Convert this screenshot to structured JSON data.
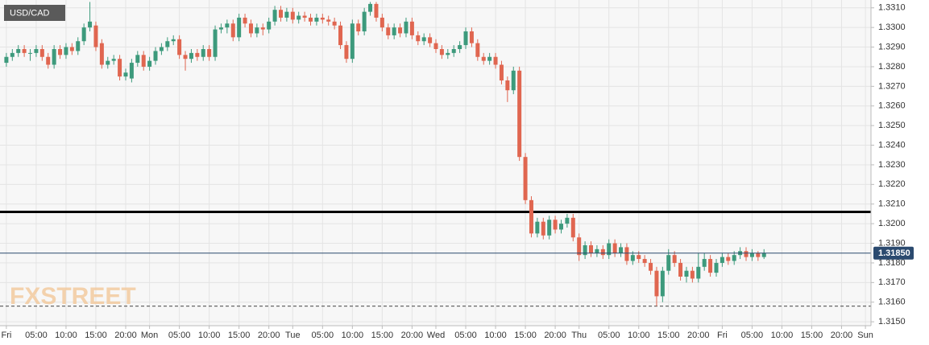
{
  "chart_data": {
    "type": "candlestick",
    "title": "USD/CAD",
    "watermark": "FXSTREET",
    "up_color": "#3d9a7c",
    "down_color": "#e06650",
    "grid": true,
    "x": [
      0,
      1,
      2,
      3,
      4,
      5,
      6,
      7,
      8,
      9,
      10,
      11,
      12,
      13,
      14,
      15,
      16,
      17,
      18,
      19,
      20,
      21,
      22,
      23,
      24,
      25,
      26,
      27,
      28,
      29,
      30,
      31,
      32,
      33,
      34,
      35,
      36,
      37,
      38,
      39,
      40,
      41,
      42,
      43,
      44,
      45,
      46,
      47,
      48,
      49,
      50,
      51,
      52,
      53,
      54,
      55,
      56,
      57,
      58,
      59,
      60,
      61,
      62,
      63,
      64,
      65,
      66,
      67,
      68,
      69,
      70,
      71,
      72,
      73,
      74,
      75,
      76,
      77,
      78,
      79,
      80,
      81,
      82,
      83,
      84,
      85,
      86,
      87,
      88,
      89,
      90,
      91,
      92,
      93,
      94,
      95,
      96,
      97,
      98,
      99,
      100,
      101,
      102,
      103,
      104,
      105,
      106,
      107,
      108,
      109,
      110,
      111,
      112,
      113,
      114,
      115,
      116,
      117,
      118,
      119,
      120,
      121,
      122,
      123,
      124,
      125,
      126,
      127
    ],
    "open": [
      1.3282,
      1.3285,
      1.3287,
      1.3289,
      1.3287,
      1.3287,
      1.3289,
      1.3285,
      1.3281,
      1.3289,
      1.3286,
      1.329,
      1.3288,
      1.3293,
      1.33,
      1.3301,
      1.3292,
      1.3281,
      1.3283,
      1.3284,
      1.3275,
      1.3274,
      1.3282,
      1.3286,
      1.328,
      1.3283,
      1.3288,
      1.329,
      1.3293,
      1.3294,
      1.3286,
      1.3284,
      1.3287,
      1.3285,
      1.3289,
      1.3285,
      1.3299,
      1.33,
      1.3302,
      1.3295,
      1.3305,
      1.3302,
      1.3297,
      1.33,
      1.3299,
      1.3303,
      1.3309,
      1.3305,
      1.3308,
      1.3304,
      1.3306,
      1.3305,
      1.3303,
      1.3305,
      1.3304,
      1.3303,
      1.3301,
      1.3291,
      1.3284,
      1.3302,
      1.3298,
      1.3308,
      1.3312,
      1.3305,
      1.33,
      1.3296,
      1.33,
      1.3297,
      1.3303,
      1.3296,
      1.3293,
      1.3295,
      1.3292,
      1.3289,
      1.3286,
      1.3287,
      1.3289,
      1.3291,
      1.3298,
      1.3292,
      1.3285,
      1.3283,
      1.3285,
      1.3281,
      1.3273,
      1.3268,
      1.3278,
      1.3234,
      1.3212,
      1.3195,
      1.3201,
      1.3194,
      1.3202,
      1.3197,
      1.32,
      1.3203,
      1.3193,
      1.3184,
      1.3189,
      1.3185,
      1.3187,
      1.3184,
      1.319,
      1.3185,
      1.3188,
      1.3181,
      1.3184,
      1.3182,
      1.318,
      1.3176,
      1.3163,
      1.3176,
      1.3184,
      1.318,
      1.3173,
      1.3176,
      1.3172,
      1.3178,
      1.3182,
      1.3175,
      1.318,
      1.3183,
      1.3181,
      1.3184,
      1.3186,
      1.3183,
      1.3185,
      1.3183
    ],
    "high": [
      1.3287,
      1.3289,
      1.3291,
      1.3291,
      1.3289,
      1.3291,
      1.3291,
      1.3287,
      1.3291,
      1.3291,
      1.3292,
      1.3292,
      1.3295,
      1.3302,
      1.3313,
      1.3303,
      1.3294,
      1.3285,
      1.3286,
      1.3286,
      1.3279,
      1.3284,
      1.3288,
      1.3288,
      1.3285,
      1.329,
      1.3292,
      1.3295,
      1.3296,
      1.3296,
      1.3288,
      1.3289,
      1.3289,
      1.3291,
      1.3291,
      1.3301,
      1.3302,
      1.3304,
      1.3304,
      1.3307,
      1.3307,
      1.3304,
      1.3302,
      1.3302,
      1.3305,
      1.3311,
      1.3311,
      1.331,
      1.331,
      1.3308,
      1.3308,
      1.3307,
      1.3307,
      1.3307,
      1.3306,
      1.3305,
      1.3303,
      1.3293,
      1.3304,
      1.3304,
      1.331,
      1.3313,
      1.3313,
      1.3307,
      1.3302,
      1.3302,
      1.3302,
      1.3305,
      1.3305,
      1.3298,
      1.3297,
      1.3297,
      1.3294,
      1.3291,
      1.3289,
      1.3291,
      1.3293,
      1.33,
      1.33,
      1.3294,
      1.3287,
      1.3287,
      1.3287,
      1.3283,
      1.3275,
      1.328,
      1.328,
      1.3236,
      1.3214,
      1.3203,
      1.3203,
      1.3204,
      1.3204,
      1.3202,
      1.3205,
      1.3205,
      1.3195,
      1.3191,
      1.3191,
      1.3189,
      1.3189,
      1.3192,
      1.3192,
      1.319,
      1.319,
      1.3186,
      1.3186,
      1.3184,
      1.3182,
      1.3178,
      1.3178,
      1.3187,
      1.3186,
      1.3182,
      1.3178,
      1.3178,
      1.3185,
      1.3185,
      1.3184,
      1.3182,
      1.3185,
      1.3185,
      1.3186,
      1.3188,
      1.3188,
      1.3187,
      1.3186,
      1.3187
    ],
    "low": [
      1.328,
      1.3283,
      1.3285,
      1.3285,
      1.3283,
      1.3285,
      1.3283,
      1.3279,
      1.3279,
      1.3284,
      1.3284,
      1.3286,
      1.3286,
      1.3291,
      1.3298,
      1.3288,
      1.3279,
      1.3279,
      1.3281,
      1.3273,
      1.3273,
      1.3272,
      1.328,
      1.3278,
      1.3278,
      1.3281,
      1.3286,
      1.3288,
      1.3291,
      1.3284,
      1.3278,
      1.3282,
      1.3283,
      1.3283,
      1.3283,
      1.3283,
      1.3297,
      1.3297,
      1.3293,
      1.3293,
      1.33,
      1.3295,
      1.3295,
      1.3296,
      1.3297,
      1.3301,
      1.3303,
      1.3303,
      1.3302,
      1.3302,
      1.3303,
      1.3301,
      1.3301,
      1.3302,
      1.3301,
      1.3299,
      1.3289,
      1.3282,
      1.3282,
      1.3296,
      1.3296,
      1.3306,
      1.3303,
      1.3298,
      1.3294,
      1.3294,
      1.3295,
      1.3295,
      1.3294,
      1.3291,
      1.3291,
      1.329,
      1.3287,
      1.3284,
      1.3284,
      1.3285,
      1.3287,
      1.3289,
      1.329,
      1.3283,
      1.3281,
      1.3281,
      1.3279,
      1.3271,
      1.3262,
      1.3266,
      1.3232,
      1.321,
      1.3193,
      1.3193,
      1.3192,
      1.3192,
      1.3195,
      1.3195,
      1.3198,
      1.3191,
      1.3181,
      1.3182,
      1.3183,
      1.3183,
      1.3182,
      1.3182,
      1.3183,
      1.3183,
      1.3179,
      1.3179,
      1.318,
      1.3178,
      1.3174,
      1.3158,
      1.316,
      1.3174,
      1.3178,
      1.3171,
      1.317,
      1.317,
      1.317,
      1.3176,
      1.3173,
      1.3173,
      1.3178,
      1.3179,
      1.3179,
      1.3182,
      1.3181,
      1.3181,
      1.3181,
      1.3182
    ],
    "close": [
      1.3285,
      1.3287,
      1.3289,
      1.3287,
      1.3287,
      1.3289,
      1.3285,
      1.3281,
      1.3289,
      1.3286,
      1.329,
      1.3288,
      1.3293,
      1.33,
      1.3303,
      1.329,
      1.3281,
      1.3283,
      1.3284,
      1.3275,
      1.3277,
      1.3282,
      1.3286,
      1.328,
      1.3283,
      1.3288,
      1.329,
      1.3293,
      1.3294,
      1.3286,
      1.3284,
      1.3287,
      1.3285,
      1.3289,
      1.3285,
      1.3299,
      1.33,
      1.3302,
      1.3295,
      1.3305,
      1.3302,
      1.3297,
      1.33,
      1.3299,
      1.3303,
      1.3309,
      1.3305,
      1.3308,
      1.3304,
      1.3306,
      1.3305,
      1.3303,
      1.3305,
      1.3304,
      1.3303,
      1.3301,
      1.3291,
      1.3284,
      1.3302,
      1.3298,
      1.3308,
      1.3312,
      1.3305,
      1.33,
      1.3296,
      1.33,
      1.3297,
      1.3303,
      1.3296,
      1.3293,
      1.3295,
      1.3292,
      1.3289,
      1.3286,
      1.3287,
      1.3289,
      1.3291,
      1.3298,
      1.3292,
      1.3285,
      1.3283,
      1.3285,
      1.3281,
      1.3273,
      1.3268,
      1.3278,
      1.3234,
      1.3212,
      1.3195,
      1.3201,
      1.3194,
      1.3202,
      1.3197,
      1.32,
      1.3203,
      1.3193,
      1.3184,
      1.3189,
      1.3185,
      1.3187,
      1.3184,
      1.319,
      1.3185,
      1.3188,
      1.3181,
      1.3184,
      1.3182,
      1.318,
      1.3176,
      1.3163,
      1.3176,
      1.3184,
      1.318,
      1.3173,
      1.3176,
      1.3172,
      1.3178,
      1.3182,
      1.3175,
      1.318,
      1.3183,
      1.3181,
      1.3184,
      1.3186,
      1.3183,
      1.3185,
      1.3183,
      1.3185
    ],
    "xlim": [
      -1,
      145
    ],
    "xticks": [
      {
        "value": 0,
        "label": "Fri"
      },
      {
        "value": 5,
        "label": "05:00"
      },
      {
        "value": 10,
        "label": "10:00"
      },
      {
        "value": 15,
        "label": "15:00"
      },
      {
        "value": 20,
        "label": "20:00"
      },
      {
        "value": 24,
        "label": "Mon"
      },
      {
        "value": 29,
        "label": "05:00"
      },
      {
        "value": 34,
        "label": "10:00"
      },
      {
        "value": 39,
        "label": "15:00"
      },
      {
        "value": 44,
        "label": "20:00"
      },
      {
        "value": 48,
        "label": "Tue"
      },
      {
        "value": 53,
        "label": "05:00"
      },
      {
        "value": 58,
        "label": "10:00"
      },
      {
        "value": 63,
        "label": "15:00"
      },
      {
        "value": 68,
        "label": "20:00"
      },
      {
        "value": 72,
        "label": "Wed"
      },
      {
        "value": 77,
        "label": "05:00"
      },
      {
        "value": 82,
        "label": "10:00"
      },
      {
        "value": 87,
        "label": "15:00"
      },
      {
        "value": 92,
        "label": "20:00"
      },
      {
        "value": 96,
        "label": "Thu"
      },
      {
        "value": 101,
        "label": "05:00"
      },
      {
        "value": 106,
        "label": "10:00"
      },
      {
        "value": 111,
        "label": "15:00"
      },
      {
        "value": 116,
        "label": "20:00"
      },
      {
        "value": 120,
        "label": "Fri"
      },
      {
        "value": 125,
        "label": "05:00"
      },
      {
        "value": 130,
        "label": "10:00"
      },
      {
        "value": 135,
        "label": "15:00"
      },
      {
        "value": 140,
        "label": "20:00"
      },
      {
        "value": 144,
        "label": "Sun"
      }
    ],
    "ylim": [
      1.3148,
      1.3314
    ],
    "yticks": [
      {
        "value": 1.315,
        "label": "1.3150"
      },
      {
        "value": 1.316,
        "label": "1.3160"
      },
      {
        "value": 1.317,
        "label": "1.3170"
      },
      {
        "value": 1.318,
        "label": "1.3180"
      },
      {
        "value": 1.319,
        "label": "1.3190"
      },
      {
        "value": 1.32,
        "label": "1.3200"
      },
      {
        "value": 1.321,
        "label": "1.3210"
      },
      {
        "value": 1.322,
        "label": "1.3220"
      },
      {
        "value": 1.323,
        "label": "1.3230"
      },
      {
        "value": 1.324,
        "label": "1.3240"
      },
      {
        "value": 1.325,
        "label": "1.3250"
      },
      {
        "value": 1.326,
        "label": "1.3260"
      },
      {
        "value": 1.327,
        "label": "1.3270"
      },
      {
        "value": 1.328,
        "label": "1.3280"
      },
      {
        "value": 1.329,
        "label": "1.3290"
      },
      {
        "value": 1.33,
        "label": "1.3300"
      },
      {
        "value": 1.331,
        "label": "1.3310"
      }
    ],
    "last_price": {
      "value": 1.3185,
      "label": "1.31850",
      "color": "#2b4a6f"
    },
    "reference_lines": [
      {
        "value": 1.3206,
        "color": "#000000",
        "style": "solid"
      },
      {
        "value": 1.3158,
        "color": "#666666",
        "style": "dashed"
      }
    ]
  }
}
